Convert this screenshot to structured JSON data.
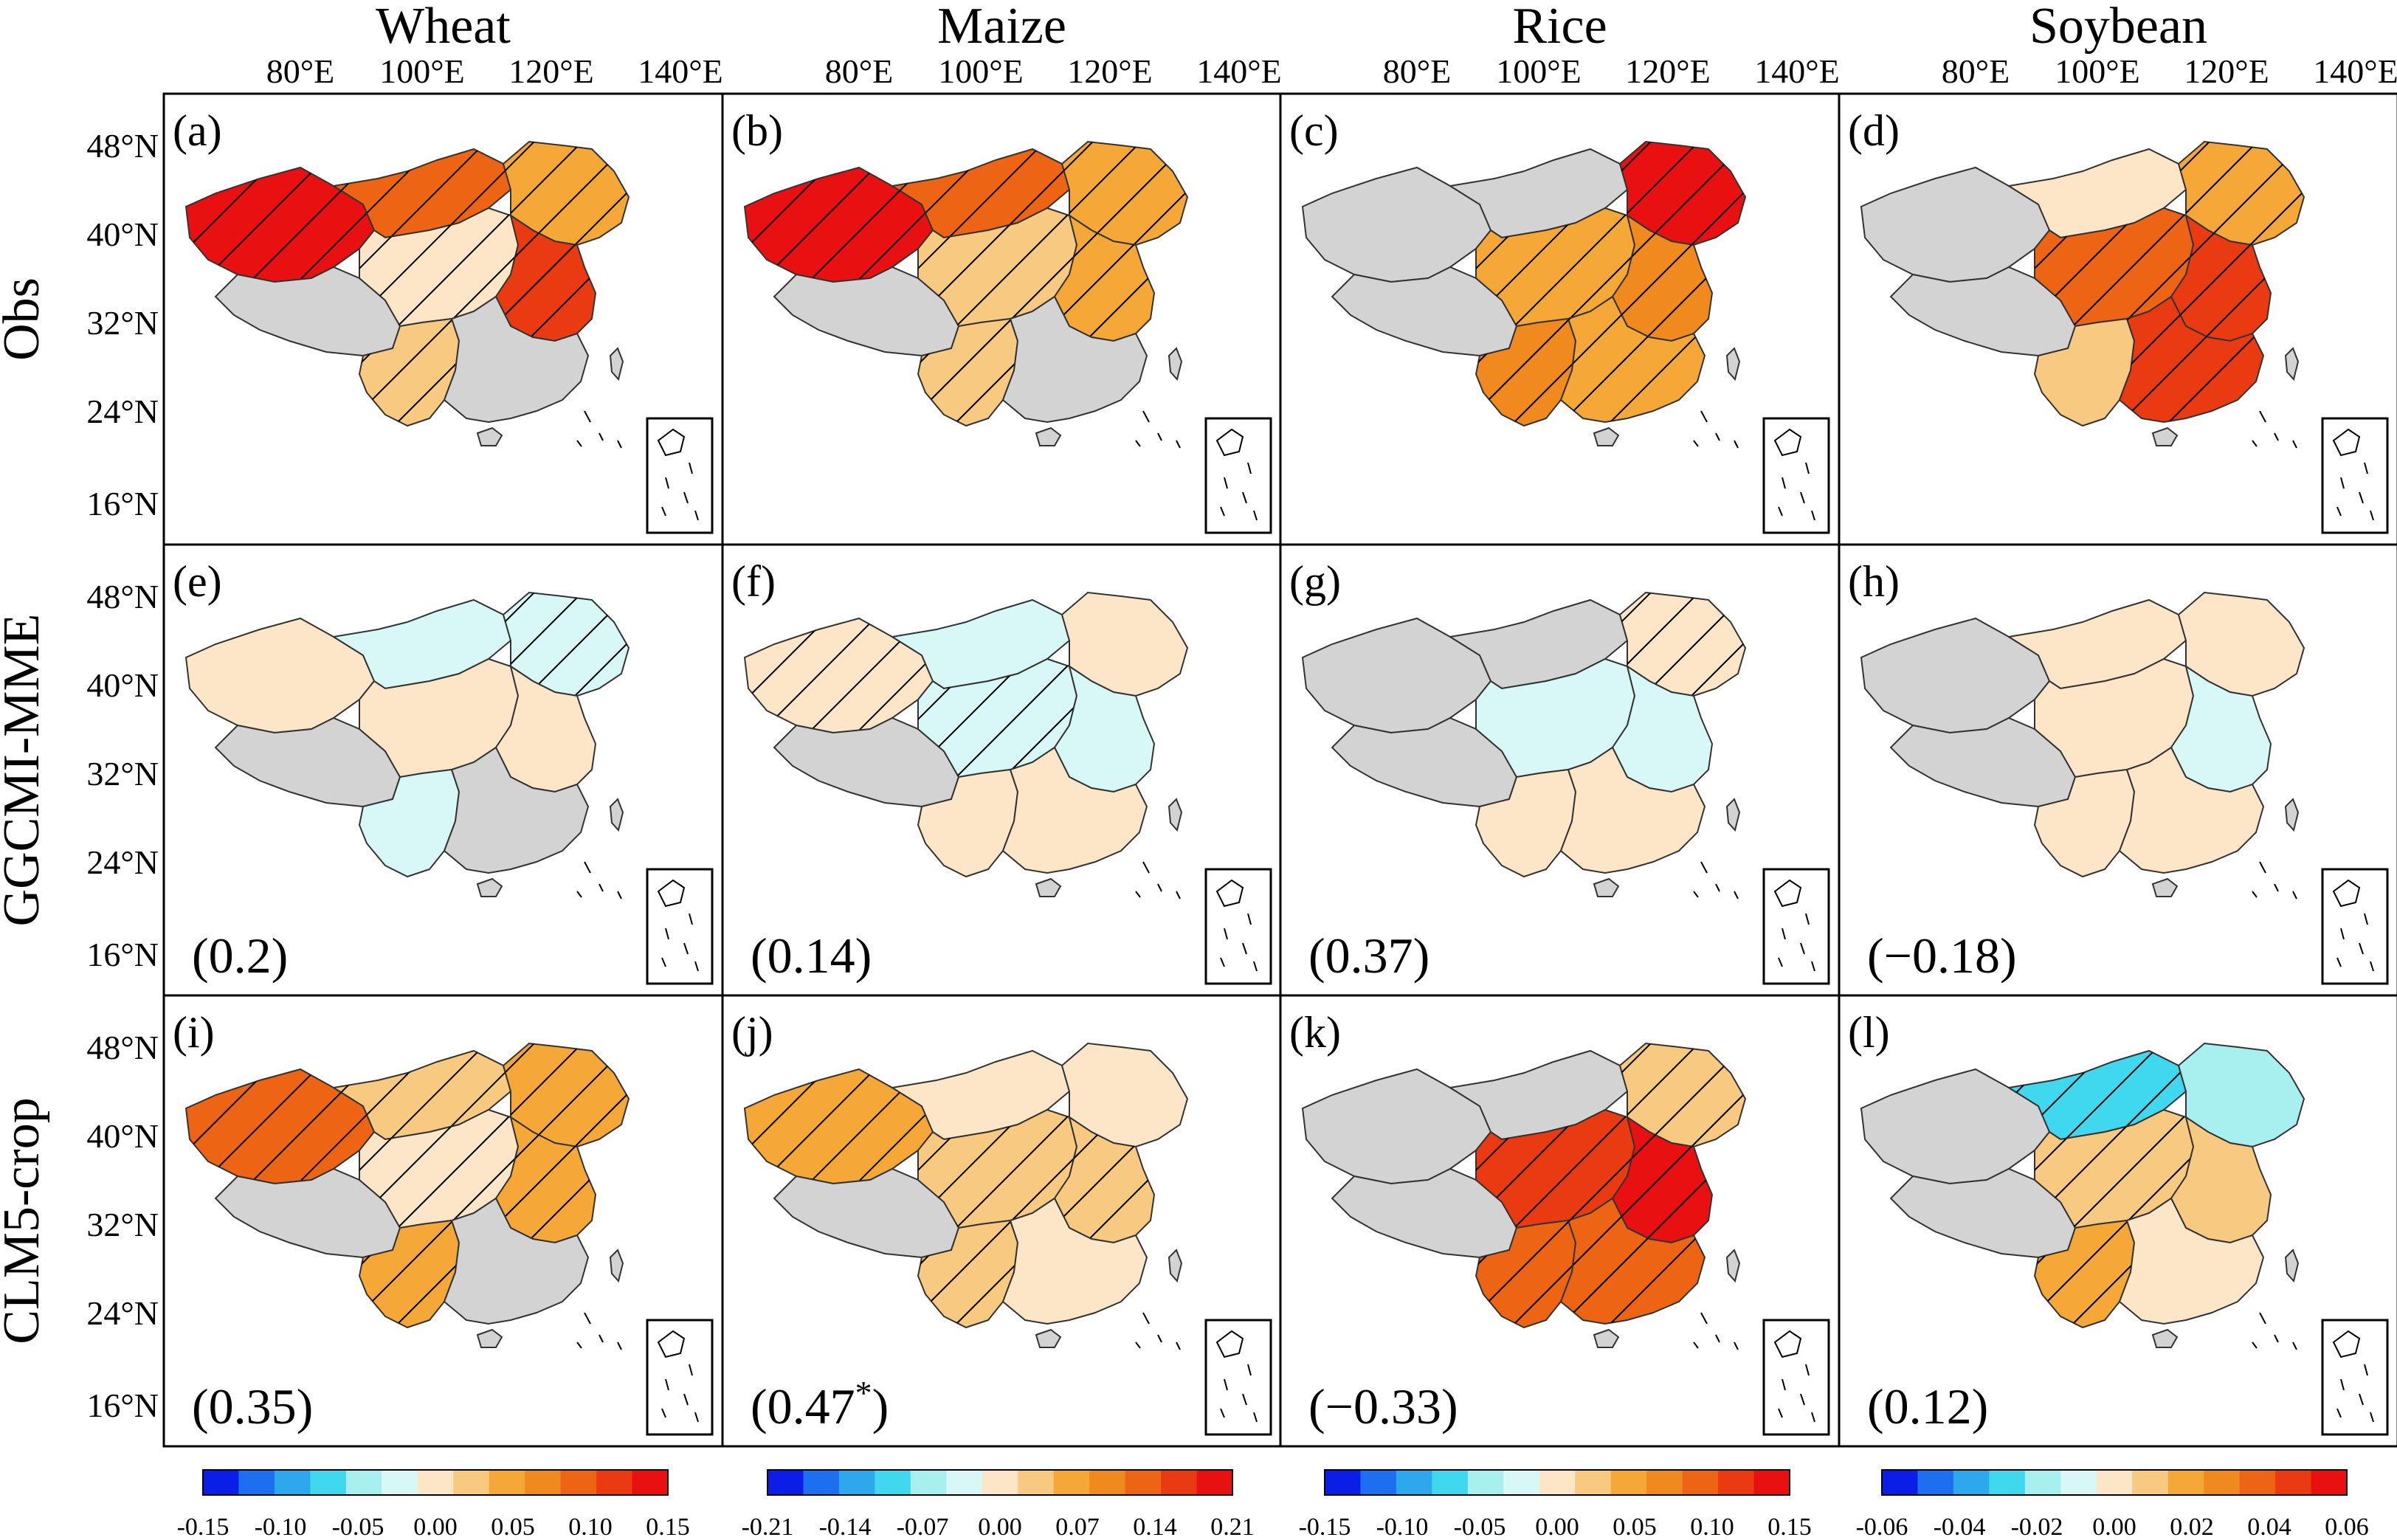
{
  "crops": [
    "Wheat",
    "Maize",
    "Rice",
    "Soybean"
  ],
  "rows": [
    "Obs",
    "GGCMI-MME",
    "CLM5-crop"
  ],
  "lon_ticks": [
    "80°E",
    "100°E",
    "120°E",
    "140°E"
  ],
  "lat_ticks": [
    "48°N",
    "40°N",
    "32°N",
    "24°N",
    "16°N"
  ],
  "panel_labels": [
    "(a)",
    "(b)",
    "(c)",
    "(d)",
    "(e)",
    "(f)",
    "(g)",
    "(h)",
    "(i)",
    "(j)",
    "(k)",
    "(l)"
  ],
  "correlations": {
    "GGCMI-MME": [
      "(0.2)",
      "(0.14)",
      "(0.37)",
      "(−0.18)"
    ],
    "CLM5-crop": [
      {
        "text": "(0.35)",
        "sup": ""
      },
      {
        "text": "(0.47",
        "sup": "*",
        "tail": ")"
      },
      {
        "text": "(−0.33)",
        "sup": ""
      },
      {
        "text": "(0.12)",
        "sup": ""
      }
    ]
  },
  "colorbars": [
    {
      "ticks": [
        "-0.15",
        "-0.10",
        "-0.05",
        "0.00",
        "0.05",
        "0.10",
        "0.15"
      ]
    },
    {
      "ticks": [
        "-0.21",
        "-0.14",
        "-0.07",
        "0.00",
        "0.07",
        "0.14",
        "0.21"
      ]
    },
    {
      "ticks": [
        "-0.15",
        "-0.10",
        "-0.05",
        "0.00",
        "0.05",
        "0.10",
        "0.15"
      ]
    },
    {
      "ticks": [
        "-0.06",
        "-0.04",
        "-0.02",
        "0.00",
        "0.02",
        "0.04",
        "0.06"
      ]
    }
  ],
  "colors": {
    "scale": [
      "#0a1ee6",
      "#1e6ef0",
      "#2ea8ec",
      "#3fd8ee",
      "#a8f0f0",
      "#d8f8f8",
      "#fde6c8",
      "#f8c980",
      "#f5a838",
      "#f08a1e",
      "#ec6414",
      "#ea3a12",
      "#e81010"
    ],
    "no_data": "#d3d3d3",
    "border": "#000000"
  },
  "chart_data": {
    "type": "choropleth-grid",
    "description": "",
    "panels": [
      {
        "label": "(a)",
        "crop": "Wheat",
        "row": "Obs",
        "xinjiang": "#e81010",
        "north": "#ec6414",
        "ne": "#f5a838",
        "central": "#fde6c8",
        "east": "#ea3a12",
        "south": "#d3d3d3",
        "sw": "#f8c980"
      },
      {
        "label": "(b)",
        "crop": "Maize",
        "row": "Obs",
        "xinjiang": "#e81010",
        "north": "#ec6414",
        "ne": "#f5a838",
        "central": "#f8c980",
        "east": "#f5a838",
        "south": "#d3d3d3",
        "sw": "#f8c980"
      },
      {
        "label": "(c)",
        "crop": "Rice",
        "row": "Obs",
        "xinjiang": "#d3d3d3",
        "north": "#d3d3d3",
        "ne": "#e81010",
        "central": "#f5a838",
        "east": "#f08a1e",
        "south": "#f5a838",
        "sw": "#f08a1e"
      },
      {
        "label": "(d)",
        "crop": "Soybean",
        "row": "Obs",
        "xinjiang": "#d3d3d3",
        "north": "#fde6c8",
        "ne": "#f5a838",
        "central": "#ec6414",
        "east": "#ea3a12",
        "south": "#ea3a12",
        "sw": "#f8c980"
      },
      {
        "label": "(e)",
        "crop": "Wheat",
        "row": "GGCMI-MME",
        "xinjiang": "#fde6c8",
        "north": "#d8f8f8",
        "ne": "#d8f8f8",
        "central": "#fde6c8",
        "east": "#fde6c8",
        "south": "#d3d3d3",
        "sw": "#d8f8f8"
      },
      {
        "label": "(f)",
        "crop": "Maize",
        "row": "GGCMI-MME",
        "xinjiang": "#fde6c8",
        "north": "#d8f8f8",
        "ne": "#fde6c8",
        "central": "#d8f8f8",
        "east": "#d8f8f8",
        "south": "#fde6c8",
        "sw": "#fde6c8"
      },
      {
        "label": "(g)",
        "crop": "Rice",
        "row": "GGCMI-MME",
        "xinjiang": "#d3d3d3",
        "north": "#d3d3d3",
        "ne": "#fde6c8",
        "central": "#d8f8f8",
        "east": "#d8f8f8",
        "south": "#fde6c8",
        "sw": "#fde6c8"
      },
      {
        "label": "(h)",
        "crop": "Soybean",
        "row": "GGCMI-MME",
        "xinjiang": "#d3d3d3",
        "north": "#fde6c8",
        "ne": "#fde6c8",
        "central": "#fde6c8",
        "east": "#d8f8f8",
        "south": "#fde6c8",
        "sw": "#fde6c8"
      },
      {
        "label": "(i)",
        "crop": "Wheat",
        "row": "CLM5-crop",
        "xinjiang": "#ec6414",
        "north": "#f8c980",
        "ne": "#f5a838",
        "central": "#fde6c8",
        "east": "#f5a838",
        "south": "#d3d3d3",
        "sw": "#f5a838"
      },
      {
        "label": "(j)",
        "crop": "Maize",
        "row": "CLM5-crop",
        "xinjiang": "#f5a838",
        "north": "#fde6c8",
        "ne": "#fde6c8",
        "central": "#f8c980",
        "east": "#f8c980",
        "south": "#fde6c8",
        "sw": "#f8c980"
      },
      {
        "label": "(k)",
        "crop": "Rice",
        "row": "CLM5-crop",
        "xinjiang": "#d3d3d3",
        "north": "#d3d3d3",
        "ne": "#f8c980",
        "central": "#ea3a12",
        "east": "#e81010",
        "south": "#ec6414",
        "sw": "#ec6414"
      },
      {
        "label": "(l)",
        "crop": "Soybean",
        "row": "CLM5-crop",
        "xinjiang": "#d3d3d3",
        "north": "#3fd8ee",
        "ne": "#a8f0f0",
        "central": "#f8c980",
        "east": "#f8c980",
        "south": "#fde6c8",
        "sw": "#f5a838"
      }
    ]
  }
}
